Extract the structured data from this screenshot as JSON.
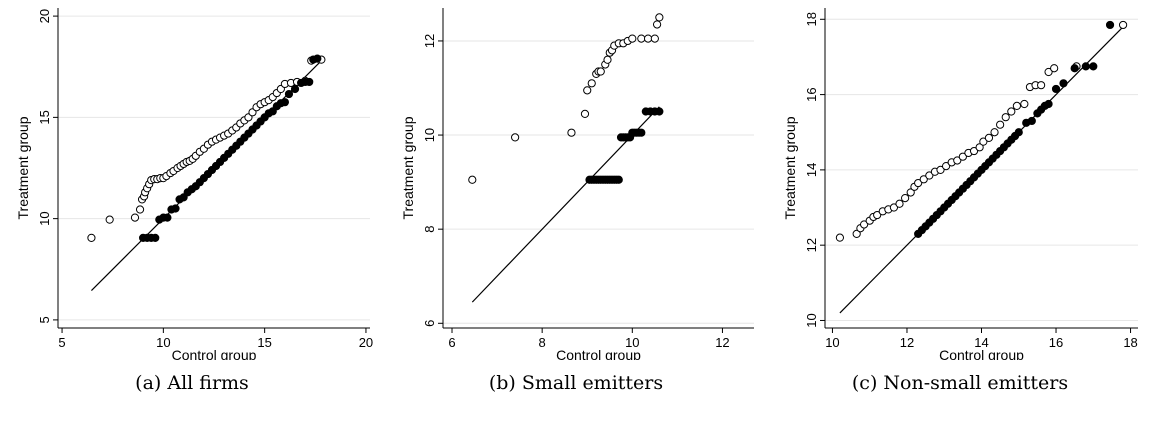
{
  "charts": [
    {
      "chart_data": {
        "type": "scatter",
        "xlabel": "Control group",
        "ylabel": "Treatment group",
        "xlim": [
          4.8,
          20.2
        ],
        "ylim": [
          4.6,
          20.4
        ],
        "xticks": [
          5,
          10,
          15,
          20
        ],
        "yticks": [
          5,
          10,
          15,
          20
        ],
        "grid": true,
        "reference_line": {
          "x": [
            6.45,
            17.8
          ],
          "y": [
            6.45,
            17.8
          ]
        },
        "series": [
          {
            "marker": "hollow-circle",
            "x": [
              6.45,
              7.35,
              8.6,
              8.85,
              8.95,
              9.05,
              9.1,
              9.2,
              9.3,
              9.4,
              9.55,
              9.7,
              9.85,
              10.0,
              10.15,
              10.35,
              10.5,
              10.7,
              10.85,
              11.0,
              11.15,
              11.3,
              11.45,
              11.6,
              11.8,
              12.0,
              12.2,
              12.4,
              12.6,
              12.8,
              13.0,
              13.2,
              13.4,
              13.6,
              13.8,
              14.0,
              14.2,
              14.4,
              14.6,
              14.8,
              15.0,
              15.2,
              15.4,
              15.6,
              15.8,
              16.0,
              16.3,
              16.6,
              17.0,
              17.3,
              17.8
            ],
            "y": [
              9.05,
              9.95,
              10.05,
              10.45,
              10.95,
              11.1,
              11.3,
              11.5,
              11.7,
              11.9,
              11.95,
              11.95,
              12.0,
              12.0,
              12.1,
              12.25,
              12.35,
              12.5,
              12.6,
              12.7,
              12.8,
              12.85,
              12.95,
              13.1,
              13.3,
              13.45,
              13.65,
              13.8,
              13.9,
              14.0,
              14.1,
              14.2,
              14.35,
              14.5,
              14.7,
              14.85,
              15.0,
              15.25,
              15.5,
              15.65,
              15.75,
              15.85,
              16.0,
              16.2,
              16.4,
              16.65,
              16.7,
              16.75,
              16.8,
              17.8,
              17.85
            ]
          },
          {
            "marker": "filled-circle",
            "x": [
              9.0,
              9.2,
              9.4,
              9.6,
              9.8,
              10.0,
              10.2,
              10.4,
              10.6,
              10.8,
              11.0,
              11.2,
              11.4,
              11.6,
              11.8,
              12.0,
              12.2,
              12.4,
              12.6,
              12.8,
              13.0,
              13.2,
              13.4,
              13.6,
              13.8,
              14.0,
              14.2,
              14.4,
              14.6,
              14.8,
              15.0,
              15.2,
              15.4,
              15.6,
              15.8,
              16.0,
              16.2,
              16.5,
              16.8,
              17.0,
              17.2,
              17.4,
              17.6
            ],
            "y": [
              9.05,
              9.05,
              9.05,
              9.05,
              9.95,
              10.05,
              10.05,
              10.45,
              10.5,
              10.95,
              11.05,
              11.3,
              11.45,
              11.6,
              11.8,
              12.0,
              12.2,
              12.4,
              12.6,
              12.8,
              13.0,
              13.2,
              13.4,
              13.6,
              13.8,
              14.0,
              14.2,
              14.4,
              14.6,
              14.8,
              15.0,
              15.2,
              15.3,
              15.55,
              15.7,
              15.75,
              16.15,
              16.4,
              16.7,
              16.75,
              16.75,
              17.85,
              17.9
            ]
          }
        ]
      },
      "caption": "(a) All firms"
    },
    {
      "chart_data": {
        "type": "scatter",
        "xlabel": "Control group",
        "ylabel": "Treatment group",
        "xlim": [
          5.8,
          12.7
        ],
        "ylim": [
          5.9,
          12.7
        ],
        "xticks": [
          6,
          8,
          10,
          12
        ],
        "yticks": [
          6,
          8,
          10,
          12
        ],
        "grid": true,
        "reference_line": {
          "x": [
            6.45,
            10.6
          ],
          "y": [
            6.45,
            10.6
          ]
        },
        "series": [
          {
            "marker": "hollow-circle",
            "x": [
              6.45,
              7.4,
              8.65,
              8.95,
              9.0,
              9.1,
              9.2,
              9.25,
              9.3,
              9.4,
              9.45,
              9.5,
              9.55,
              9.6,
              9.7,
              9.8,
              9.9,
              10.0,
              10.2,
              10.35,
              10.5,
              10.55,
              10.6
            ],
            "y": [
              9.05,
              9.95,
              10.05,
              10.45,
              10.95,
              11.1,
              11.3,
              11.35,
              11.35,
              11.5,
              11.6,
              11.75,
              11.8,
              11.9,
              11.95,
              11.95,
              12.0,
              12.05,
              12.05,
              12.05,
              12.05,
              12.35,
              12.5
            ]
          },
          {
            "marker": "filled-circle",
            "x": [
              9.05,
              9.1,
              9.15,
              9.2,
              9.25,
              9.3,
              9.35,
              9.4,
              9.45,
              9.5,
              9.55,
              9.6,
              9.65,
              9.7,
              9.75,
              9.8,
              9.85,
              9.9,
              9.95,
              10.0,
              10.05,
              10.1,
              10.15,
              10.2,
              10.3,
              10.4,
              10.5,
              10.6
            ],
            "y": [
              9.05,
              9.05,
              9.05,
              9.05,
              9.05,
              9.05,
              9.05,
              9.05,
              9.05,
              9.05,
              9.05,
              9.05,
              9.05,
              9.05,
              9.95,
              9.95,
              9.95,
              9.95,
              9.95,
              10.05,
              10.05,
              10.05,
              10.05,
              10.05,
              10.5,
              10.5,
              10.5,
              10.5
            ]
          }
        ]
      },
      "caption": "(b) Small emitters"
    },
    {
      "chart_data": {
        "type": "scatter",
        "xlabel": "Control group",
        "ylabel": "Treatment group",
        "xlim": [
          9.8,
          18.2
        ],
        "ylim": [
          9.8,
          18.3
        ],
        "xticks": [
          10,
          12,
          14,
          16,
          18
        ],
        "yticks": [
          10,
          12,
          14,
          16,
          18
        ],
        "grid": true,
        "reference_line": {
          "x": [
            10.2,
            17.8
          ],
          "y": [
            10.2,
            17.8
          ]
        },
        "series": [
          {
            "marker": "hollow-circle",
            "x": [
              10.2,
              10.65,
              10.75,
              10.85,
              11.0,
              11.1,
              11.2,
              11.35,
              11.5,
              11.65,
              11.8,
              11.95,
              12.1,
              12.2,
              12.3,
              12.45,
              12.6,
              12.75,
              12.9,
              13.05,
              13.2,
              13.35,
              13.5,
              13.65,
              13.8,
              13.95,
              14.05,
              14.2,
              14.35,
              14.5,
              14.65,
              14.8,
              14.95,
              15.15,
              15.3,
              15.45,
              15.6,
              15.8,
              15.95,
              16.55,
              17.8
            ],
            "y": [
              12.2,
              12.3,
              12.45,
              12.55,
              12.65,
              12.75,
              12.8,
              12.9,
              12.95,
              13.0,
              13.1,
              13.25,
              13.4,
              13.55,
              13.65,
              13.75,
              13.85,
              13.95,
              14.0,
              14.1,
              14.2,
              14.25,
              14.35,
              14.45,
              14.5,
              14.6,
              14.75,
              14.85,
              15.0,
              15.2,
              15.4,
              15.55,
              15.7,
              15.75,
              16.2,
              16.25,
              16.25,
              16.6,
              16.7,
              16.75,
              17.85
            ]
          },
          {
            "marker": "filled-circle",
            "x": [
              12.3,
              12.4,
              12.5,
              12.6,
              12.7,
              12.8,
              12.9,
              13.0,
              13.1,
              13.2,
              13.3,
              13.4,
              13.5,
              13.6,
              13.7,
              13.8,
              13.9,
              14.0,
              14.1,
              14.2,
              14.3,
              14.4,
              14.5,
              14.6,
              14.7,
              14.8,
              14.9,
              15.0,
              15.2,
              15.35,
              15.5,
              15.6,
              15.7,
              15.8,
              16.0,
              16.2,
              16.5,
              16.8,
              17.0,
              17.45
            ],
            "y": [
              12.3,
              12.4,
              12.5,
              12.6,
              12.7,
              12.8,
              12.9,
              13.0,
              13.1,
              13.2,
              13.3,
              13.4,
              13.5,
              13.6,
              13.7,
              13.8,
              13.9,
              14.0,
              14.1,
              14.2,
              14.3,
              14.4,
              14.5,
              14.6,
              14.7,
              14.8,
              14.9,
              15.0,
              15.25,
              15.3,
              15.5,
              15.6,
              15.7,
              15.75,
              16.15,
              16.3,
              16.7,
              16.75,
              16.75,
              17.85
            ]
          }
        ]
      },
      "caption": "(c) Non-small emitters"
    }
  ]
}
